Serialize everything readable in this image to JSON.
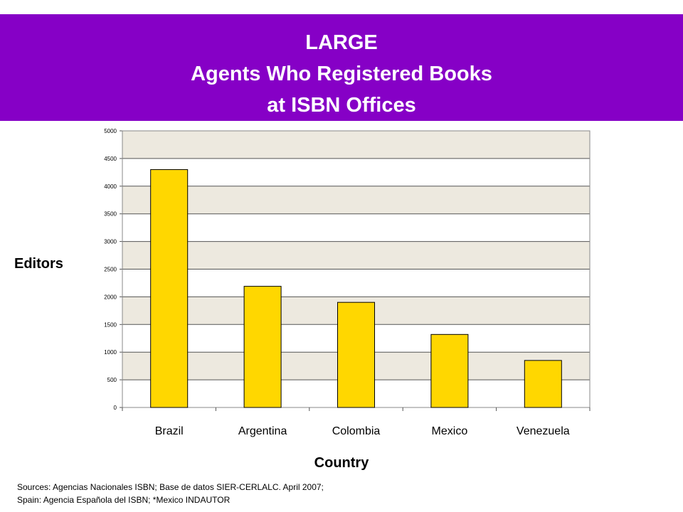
{
  "title": {
    "line1": "LARGE",
    "line2": "Agents Who Registered Books",
    "line3": "at ISBN Offices"
  },
  "sources": {
    "line1": "Sources: Agencias Nacionales ISBN; Base de datos SIER-CERLALC. April 2007;",
    "line2": "Spain: Agencia Española del ISBN; *Mexico INDAUTOR"
  },
  "colors": {
    "banner": "#8600c6",
    "bar": "#ffd700",
    "band": "#ede9df"
  },
  "chart_data": {
    "type": "bar",
    "categories": [
      "Brazil",
      "Argentina",
      "Colombia",
      "Mexico",
      "Venezuela"
    ],
    "values": [
      4300,
      2190,
      1900,
      1320,
      850
    ],
    "xlabel": "Country",
    "ylabel": "Editors",
    "ylim": [
      0,
      5000
    ],
    "yticks": [
      0,
      500,
      1000,
      1500,
      2000,
      2500,
      3000,
      3500,
      4000,
      4500,
      5000
    ],
    "grid": true,
    "legend": "none"
  }
}
